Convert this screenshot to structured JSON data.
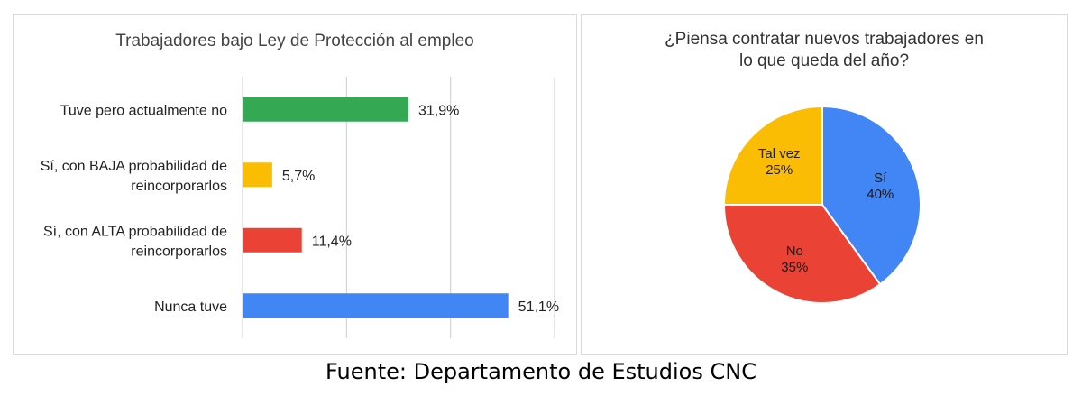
{
  "chart_data": [
    {
      "type": "bar",
      "orientation": "horizontal",
      "title": "Trabajadores bajo Ley de Protección al empleo",
      "categories": [
        "Tuve pero actualmente no",
        "Sí, con BAJA probabilidad de reincorporarlos",
        "Sí, con ALTA probabilidad de reincorporarlos",
        "Nunca tuve"
      ],
      "category_lines": [
        [
          "Tuve pero actualmente no"
        ],
        [
          "Sí, con BAJA probabilidad de",
          "reincorporarlos"
        ],
        [
          "Sí, con ALTA probabilidad de",
          "reincorporarlos"
        ],
        [
          "Nunca tuve"
        ]
      ],
      "values": [
        31.9,
        5.7,
        11.4,
        51.1
      ],
      "value_labels": [
        "31,9%",
        "5,7%",
        "11,4%",
        "51,1%"
      ],
      "colors": [
        "#34a853",
        "#fbbc04",
        "#ea4335",
        "#4285f4"
      ],
      "xlim": [
        0,
        60
      ],
      "grid": true,
      "gridlines": [
        0,
        20,
        40,
        60
      ],
      "legend": "none"
    },
    {
      "type": "pie",
      "title": "¿Piensa contratar nuevos trabajadores en lo que queda del año?",
      "title_lines": [
        "¿Piensa contratar nuevos trabajadores en",
        "lo que queda del año?"
      ],
      "slices": [
        {
          "label": "Sí",
          "value": 40,
          "value_label": "40%",
          "color": "#4285f4"
        },
        {
          "label": "No",
          "value": 35,
          "value_label": "35%",
          "color": "#ea4335"
        },
        {
          "label": "Tal vez",
          "value": 25,
          "value_label": "25%",
          "color": "#fbbc04"
        }
      ],
      "start_angle": "top, clockwise",
      "legend": "labels inside slices"
    }
  ],
  "source_text": "Fuente: Departamento de Estudios CNC"
}
